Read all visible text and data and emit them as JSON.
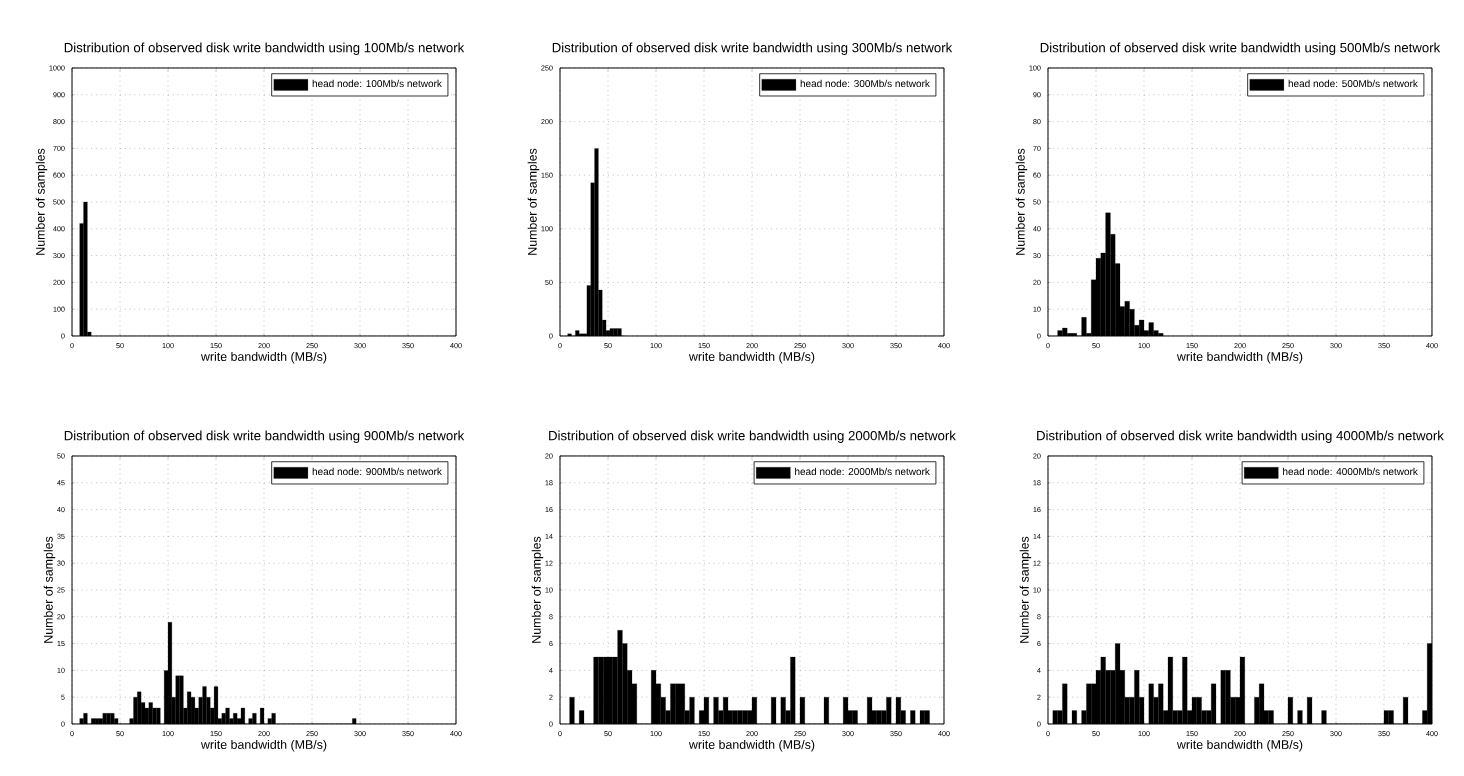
{
  "chart_data": [
    {
      "type": "histogram",
      "title": "Distribution of observed disk write bandwidth using 100Mb/s network",
      "xlabel": "write bandwidth (MB/s)",
      "ylabel": "Number of samples",
      "xlim": [
        0,
        400
      ],
      "ylim": [
        0,
        1000
      ],
      "xticks": [
        0,
        50,
        100,
        150,
        200,
        250,
        300,
        350,
        400
      ],
      "yticks": [
        0,
        100,
        200,
        300,
        400,
        500,
        600,
        700,
        800,
        900,
        1000
      ],
      "grid": true,
      "legend": "top right",
      "bins": [
        8,
        12,
        16,
        20
      ],
      "series": [
        {
          "name": "head node: 100Mb/s network",
          "color": "#000000",
          "values": [
            420,
            500,
            15
          ]
        }
      ]
    },
    {
      "type": "histogram",
      "title": "Distribution of observed disk write bandwidth using 300Mb/s network",
      "xlabel": "write bandwidth (MB/s)",
      "ylabel": "Number of samples",
      "xlim": [
        0,
        400
      ],
      "ylim": [
        0,
        250
      ],
      "xticks": [
        0,
        50,
        100,
        150,
        200,
        250,
        300,
        350,
        400
      ],
      "yticks": [
        0,
        50,
        100,
        150,
        200,
        250
      ],
      "grid": true,
      "legend": "top right",
      "bins": [
        8,
        12,
        16,
        20,
        24,
        28,
        32,
        36,
        40,
        44,
        48,
        52,
        56,
        60,
        64,
        68
      ],
      "series": [
        {
          "name": "head node: 300Mb/s network",
          "color": "#000000",
          "values": [
            2,
            0,
            5,
            2,
            2,
            47,
            143,
            175,
            43,
            15,
            5,
            7,
            7,
            7,
            0
          ]
        }
      ]
    },
    {
      "type": "histogram",
      "title": "Distribution of observed disk write bandwidth using 500Mb/s network",
      "xlabel": "write bandwidth (MB/s)",
      "ylabel": "Number of samples",
      "xlim": [
        0,
        400
      ],
      "ylim": [
        0,
        100
      ],
      "xticks": [
        0,
        50,
        100,
        150,
        200,
        250,
        300,
        350,
        400
      ],
      "yticks": [
        0,
        10,
        20,
        30,
        40,
        50,
        60,
        70,
        80,
        90,
        100
      ],
      "grid": true,
      "legend": "top right",
      "bins": [
        10,
        15,
        20,
        25,
        30,
        35,
        40,
        45,
        50,
        55,
        60,
        65,
        70,
        75,
        80,
        85,
        90,
        95,
        100,
        105,
        110,
        115,
        120
      ],
      "series": [
        {
          "name": "head node: 500Mb/s network",
          "color": "#000000",
          "values": [
            2,
            3,
            1,
            1,
            0,
            7,
            1,
            21,
            29,
            31,
            46,
            38,
            27,
            11,
            13,
            10,
            4,
            6,
            2,
            5,
            2,
            1
          ]
        }
      ]
    },
    {
      "type": "histogram",
      "title": "Distribution of observed disk write bandwidth using 900Mb/s network",
      "xlabel": "write bandwidth (MB/s)",
      "ylabel": "Number of samples",
      "xlim": [
        0,
        400
      ],
      "ylim": [
        0,
        50
      ],
      "xticks": [
        0,
        50,
        100,
        150,
        200,
        250,
        300,
        350,
        400
      ],
      "yticks": [
        0,
        5,
        10,
        15,
        20,
        25,
        30,
        35,
        40,
        45,
        50
      ],
      "grid": true,
      "legend": "top right",
      "bins": [
        8,
        12,
        16,
        20,
        24,
        28,
        32,
        36,
        40,
        44,
        48,
        52,
        56,
        60,
        64,
        68,
        72,
        76,
        80,
        84,
        88,
        92,
        96,
        100,
        104,
        108,
        112,
        116,
        120,
        124,
        128,
        132,
        136,
        140,
        144,
        148,
        152,
        156,
        160,
        164,
        168,
        172,
        176,
        180,
        184,
        188,
        192,
        196,
        200,
        204,
        208,
        212,
        216,
        220,
        224,
        228,
        232,
        236,
        240,
        244,
        248,
        252,
        256,
        260,
        264,
        268,
        272,
        276,
        280,
        284,
        288,
        292,
        296
      ],
      "series": [
        {
          "name": "head node: 900Mb/s network",
          "color": "#000000",
          "values": [
            1,
            2,
            0,
            1,
            1,
            1,
            2,
            2,
            2,
            1,
            0,
            0,
            0,
            1,
            5,
            6,
            4,
            3,
            4,
            3,
            3,
            0,
            10,
            19,
            5,
            9,
            9,
            3,
            6,
            5,
            3,
            5,
            7,
            5,
            3,
            7,
            1,
            2,
            3,
            1,
            2,
            1,
            3,
            0,
            1,
            2,
            0,
            3,
            0,
            1,
            2,
            0,
            0,
            0,
            0,
            0,
            0,
            0,
            0,
            0,
            0,
            0,
            0,
            0,
            0,
            0,
            0,
            0,
            0,
            0,
            0,
            1
          ]
        }
      ]
    },
    {
      "type": "histogram",
      "title": "Distribution of observed disk write bandwidth using 2000Mb/s network",
      "xlabel": "write bandwidth (MB/s)",
      "ylabel": "Number of samples",
      "xlim": [
        0,
        400
      ],
      "ylim": [
        0,
        20
      ],
      "xticks": [
        0,
        50,
        100,
        150,
        200,
        250,
        300,
        350,
        400
      ],
      "yticks": [
        0,
        2,
        4,
        6,
        8,
        10,
        12,
        14,
        16,
        18,
        20
      ],
      "grid": true,
      "legend": "top right",
      "bins": [
        10,
        15,
        20,
        25,
        30,
        35,
        40,
        45,
        50,
        55,
        60,
        65,
        70,
        75,
        80,
        85,
        90,
        95,
        100,
        105,
        110,
        115,
        120,
        125,
        130,
        135,
        140,
        145,
        150,
        155,
        160,
        165,
        170,
        175,
        180,
        185,
        190,
        195,
        200,
        205,
        210,
        215,
        220,
        225,
        230,
        235,
        240,
        245,
        250,
        255,
        260,
        265,
        270,
        275,
        280,
        285,
        290,
        295,
        300,
        305,
        310,
        315,
        320,
        325,
        330,
        335,
        340,
        345,
        350,
        355,
        360,
        365,
        370,
        375,
        380,
        385
      ],
      "series": [
        {
          "name": "head node: 2000Mb/s network",
          "color": "#000000",
          "values": [
            2,
            0,
            1,
            0,
            0,
            5,
            5,
            5,
            5,
            5,
            7,
            6,
            4,
            3,
            0,
            0,
            0,
            4,
            3,
            2,
            1,
            3,
            3,
            3,
            1,
            2,
            0,
            1,
            2,
            0,
            2,
            1,
            2,
            1,
            1,
            1,
            1,
            1,
            2,
            0,
            0,
            0,
            2,
            0,
            2,
            1,
            5,
            0,
            2,
            0,
            0,
            0,
            0,
            2,
            0,
            0,
            0,
            2,
            1,
            1,
            0,
            0,
            2,
            1,
            1,
            1,
            2,
            0,
            2,
            1,
            0,
            1,
            0,
            1,
            1
          ]
        }
      ]
    },
    {
      "type": "histogram",
      "title": "Distribution of observed disk write bandwidth using 4000Mb/s network",
      "xlabel": "write bandwidth (MB/s)",
      "ylabel": "Number of samples",
      "xlim": [
        0,
        400
      ],
      "ylim": [
        0,
        20
      ],
      "xticks": [
        0,
        50,
        100,
        150,
        200,
        250,
        300,
        350,
        400
      ],
      "yticks": [
        0,
        2,
        4,
        6,
        8,
        10,
        12,
        14,
        16,
        18,
        20
      ],
      "grid": true,
      "legend": "top right",
      "bins": [
        5,
        10,
        15,
        20,
        25,
        30,
        35,
        40,
        45,
        50,
        55,
        60,
        65,
        70,
        75,
        80,
        85,
        90,
        95,
        100,
        105,
        110,
        115,
        120,
        125,
        130,
        135,
        140,
        145,
        150,
        155,
        160,
        165,
        170,
        175,
        180,
        185,
        190,
        195,
        200,
        205,
        210,
        215,
        220,
        225,
        230,
        235,
        240,
        245,
        250,
        255,
        260,
        265,
        270,
        275,
        280,
        285,
        290,
        295,
        300,
        305,
        310,
        315,
        320,
        325,
        330,
        335,
        340,
        345,
        350,
        355,
        360,
        365,
        370,
        375,
        380,
        385,
        390,
        395,
        400
      ],
      "series": [
        {
          "name": "head node: 4000Mb/s network",
          "color": "#000000",
          "values": [
            1,
            1,
            3,
            0,
            1,
            0,
            1,
            3,
            3,
            4,
            5,
            4,
            4,
            6,
            4,
            2,
            2,
            4,
            2,
            0,
            3,
            2,
            3,
            1,
            5,
            1,
            1,
            5,
            1,
            2,
            2,
            1,
            1,
            3,
            0,
            4,
            4,
            2,
            2,
            5,
            0,
            0,
            2,
            3,
            1,
            1,
            0,
            0,
            0,
            2,
            0,
            1,
            0,
            2,
            0,
            0,
            1,
            0,
            0,
            0,
            0,
            0,
            0,
            0,
            0,
            0,
            0,
            0,
            0,
            1,
            1,
            0,
            0,
            2,
            0,
            0,
            0,
            1,
            6
          ]
        }
      ]
    }
  ]
}
